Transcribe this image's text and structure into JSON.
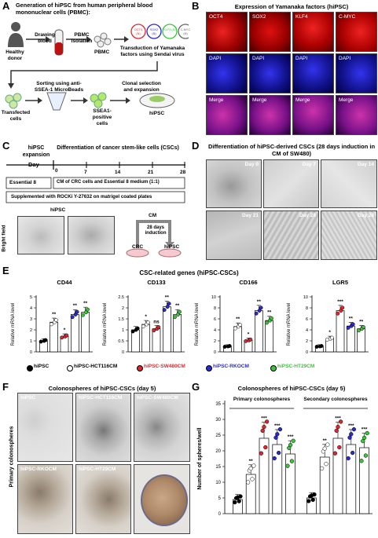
{
  "panelA": {
    "letter": "A",
    "title": "Generation of hiPSC from human peripheral blood mononuclear cells (PBMC):",
    "drawing_blood": "Drawing blood",
    "pbmc_isolation": "PBMC isolation",
    "healthy_donor": "Healthy donor",
    "pbmc": "PBMC",
    "factors": [
      "OCT4 (N)",
      "SOX2 (N)",
      "KLF4 (N)",
      "C-MYC (N)"
    ],
    "transduction": "Transduction of Yamanaka factors using Sendai virus",
    "transfected": "Transfected cells",
    "sorting": "Sorting using anti-SSEA-1 MicroBeads",
    "ssea1": "SSEA1-positive cells",
    "clonal": "Clonal selection and expansion",
    "hipsc": "hiPSC"
  },
  "panelB": {
    "letter": "B",
    "title": "Expression of Yamanaka factors (hiPSC)",
    "row1": [
      "OCT4",
      "SOX2",
      "KLF4",
      "C-MYC"
    ],
    "row2": [
      "DAPI",
      "DAPI",
      "DAPI",
      "DAPI"
    ],
    "row3": [
      "Merge",
      "Merge",
      "Merge",
      "Merge"
    ]
  },
  "panelC": {
    "letter": "C",
    "hipsc_expansion": "hiPSC expansion",
    "differentiation": "Differentiation of cancer stem-like cells (CSCs)",
    "day": "Day",
    "ticks": [
      "0",
      "7",
      "14",
      "21",
      "28"
    ],
    "essential8": "Essential 8",
    "cm_text": "CM of CRC cells and Essential 8 medium (1:1)",
    "supplemented": "Supplemented with ROCKi Y-27632 on matrigel coated plates",
    "hipsc": "hiPSC",
    "bright_field": "Bright field",
    "cm": "CM",
    "induction": "28 days induction",
    "crc": "CRC",
    "hipsc2": "hiPSC"
  },
  "panelD": {
    "letter": "D",
    "title": "Differentiation of hiPSC-derived CSCs (28 days induction in CM of SW480)",
    "days": [
      "Day 0",
      "Day 7",
      "Day 14",
      "Day 21",
      "Day 28",
      "Day 28"
    ]
  },
  "panelE": {
    "letter": "E",
    "title": "CSC-related genes (hiPSC-CSCs)",
    "ylabel": "Relative mRNA level",
    "groups": [
      "hiPSC",
      "hiPSC-HCT116CM",
      "hiPSC-SW480CM",
      "hiPSC-RKOCM",
      "hiPSC-HT29CM"
    ],
    "colors": [
      "#000000",
      "#ffffff",
      "#e0262b",
      "#2a2ad0",
      "#3cc43c"
    ]
  },
  "panelF": {
    "letter": "F",
    "title": "Colonospheres of hiPSC-CSCs (day 5)",
    "side": "Primary colonospheres",
    "labels": [
      "hiPSC",
      "hiPSC-HCT116CM",
      "hiPSC-SW480CM",
      "hiPSC-RKOCM",
      "hiPSC-HT29CM"
    ]
  },
  "panelG": {
    "letter": "G",
    "title": "Colonospheres of hiPSC-CSCs (day 5)",
    "ylabel": "Number of spheres/well",
    "primary": "Primary colonospheres",
    "secondary": "Secondary colonospheres"
  },
  "chart_data": [
    {
      "type": "scatter",
      "title": "CD44",
      "ylabel": "Relative mRNA level",
      "ylim": [
        0,
        5
      ],
      "yticks": [
        0,
        1,
        2,
        3,
        4,
        5
      ],
      "categories": [
        "hiPSC",
        "hiPSC-HCT116CM",
        "hiPSC-SW480CM",
        "hiPSC-RKOCM",
        "hiPSC-HT29CM"
      ],
      "values": [
        1.0,
        2.7,
        1.4,
        3.4,
        3.6
      ],
      "sig": [
        "",
        "**",
        "*",
        "**",
        "**"
      ]
    },
    {
      "type": "scatter",
      "title": "CD133",
      "ylabel": "Relative mRNA level",
      "ylim": [
        0,
        2.5
      ],
      "yticks": [
        0.0,
        0.5,
        1.0,
        1.5,
        2.0,
        2.5
      ],
      "categories": [
        "hiPSC",
        "hiPSC-HCT116CM",
        "hiPSC-SW480CM",
        "hiPSC-RKOCM",
        "hiPSC-HT29CM"
      ],
      "values": [
        1.0,
        1.25,
        1.05,
        2.05,
        1.7
      ],
      "sig": [
        "",
        "*",
        "ns",
        "**",
        "**"
      ]
    },
    {
      "type": "scatter",
      "title": "CD166",
      "ylabel": "Relative mRNA level",
      "ylim": [
        0,
        10
      ],
      "yticks": [
        0,
        2,
        4,
        6,
        8,
        10
      ],
      "categories": [
        "hiPSC",
        "hiPSC-HCT116CM",
        "hiPSC-SW480CM",
        "hiPSC-RKOCM",
        "hiPSC-HT29CM"
      ],
      "values": [
        1.0,
        4.6,
        2.1,
        7.5,
        5.7
      ],
      "sig": [
        "",
        "**",
        "*",
        "**",
        "**"
      ]
    },
    {
      "type": "scatter",
      "title": "LGR5",
      "ylabel": "Relative mRNA level",
      "ylim": [
        0,
        10
      ],
      "yticks": [
        0,
        2,
        4,
        6,
        8,
        10
      ],
      "categories": [
        "hiPSC",
        "hiPSC-HCT116CM",
        "hiPSC-SW480CM",
        "hiPSC-RKOCM",
        "hiPSC-HT29CM"
      ],
      "values": [
        1.0,
        2.4,
        7.5,
        4.7,
        4.2
      ],
      "sig": [
        "",
        "*",
        "***",
        "**",
        "**"
      ]
    },
    {
      "type": "scatter",
      "title": "Colonospheres of hiPSC-CSCs (day 5)",
      "ylabel": "Number of spheres/well",
      "ylim": [
        0,
        35
      ],
      "yticks": [
        0,
        5,
        10,
        15,
        20,
        25,
        30,
        35
      ],
      "groups": [
        "Primary colonospheres",
        "Secondary colonospheres"
      ],
      "categories": [
        "hiPSC",
        "hiPSC-HCT116CM",
        "hiPSC-SW480CM",
        "hiPSC-RKOCM",
        "hiPSC-HT29CM"
      ],
      "series": [
        {
          "name": "Primary colonospheres",
          "values": [
            4.5,
            12.5,
            24,
            22,
            19
          ],
          "sig": [
            "",
            "**",
            "***",
            "***",
            "***"
          ]
        },
        {
          "name": "Secondary colonospheres",
          "values": [
            5,
            18,
            24,
            22,
            21
          ],
          "sig": [
            "",
            "**",
            "***",
            "***",
            "***"
          ]
        }
      ]
    }
  ]
}
